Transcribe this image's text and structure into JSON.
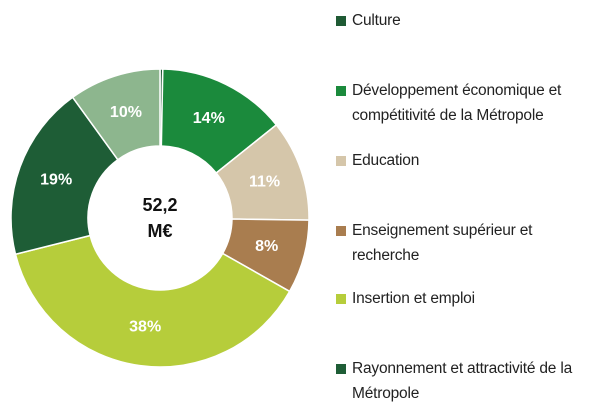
{
  "chart_data": {
    "type": "donut",
    "center_label": [
      "52,2",
      "M€"
    ],
    "categories": [
      "Culture",
      "Développement économique et compétitivité de la Métropole",
      "Education",
      "Enseignement supérieur et recherche",
      "Insertion et emploi",
      "Rayonnement et attractivité de la Métropole",
      null
    ],
    "values": [
      0.3,
      14,
      11,
      8,
      38,
      19,
      10
    ],
    "value_labels": [
      null,
      "14%",
      "11%",
      "8%",
      "38%",
      "19%",
      "10%"
    ],
    "colors": [
      "#1f5a34",
      "#1b8a3c",
      "#d5c6aa",
      "#a97d4f",
      "#b6cd3b",
      "#1e5d36",
      "#8db68e"
    ],
    "legend": "right"
  }
}
